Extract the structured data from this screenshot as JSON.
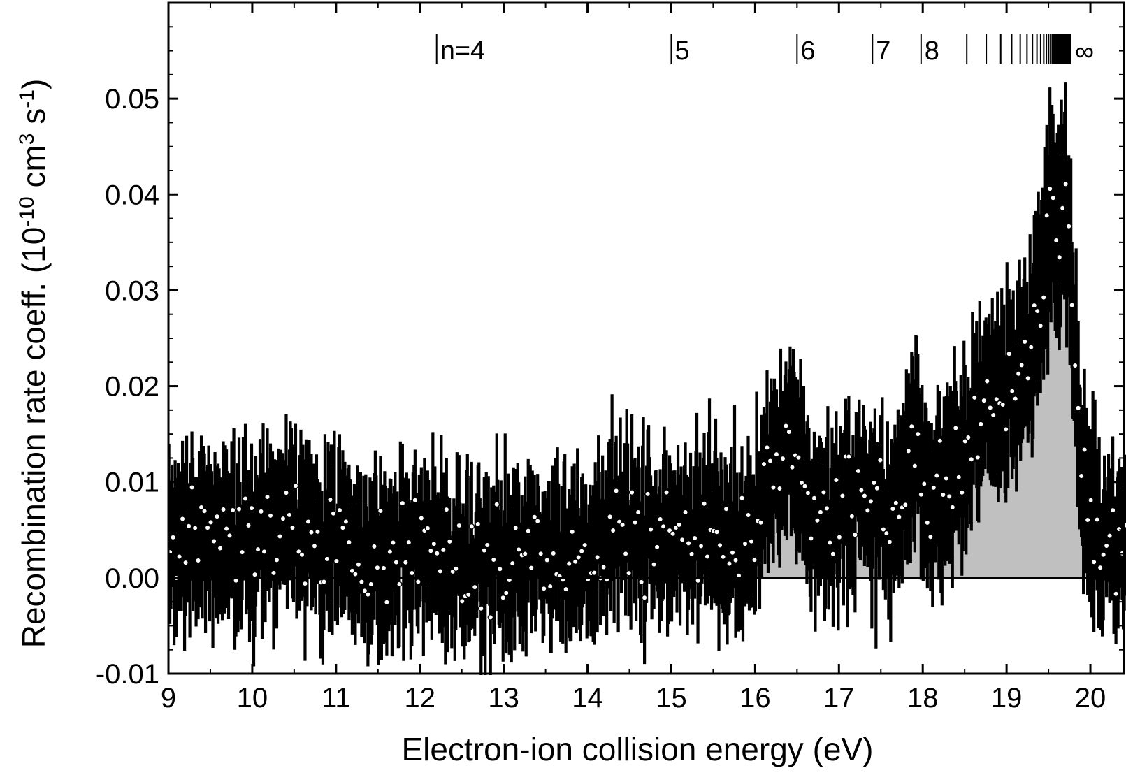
{
  "chart_data": {
    "type": "scatter",
    "xlabel": "Electron-ion collision energy (eV)",
    "ylabel": {
      "prefix": "Recombination rate coeff. (10",
      "exp1": "-10",
      "mid1": " cm",
      "exp2": "3",
      "mid2": " s",
      "exp3": "-1",
      "suffix": ")"
    },
    "xlim": [
      9,
      20.4
    ],
    "ylim": [
      -0.01,
      0.06
    ],
    "x_ticks": [
      9,
      10,
      11,
      12,
      13,
      14,
      15,
      16,
      17,
      18,
      19,
      20
    ],
    "x_tick_labels": [
      "9",
      "10",
      "11",
      "12",
      "13",
      "14",
      "15",
      "16",
      "17",
      "18",
      "19",
      "20"
    ],
    "y_ticks": [
      -0.01,
      0.0,
      0.01,
      0.02,
      0.03,
      0.04,
      0.05
    ],
    "y_tick_labels": [
      "-0.01",
      "0.00",
      "0.01",
      "0.02",
      "0.03",
      "0.04",
      "0.05"
    ],
    "grid": false,
    "fill_color": "#c0c0c0",
    "line_color": "#000000",
    "marker_face_color": "#ffffff",
    "series_markers": [
      {
        "x": 12.2,
        "label": "n=4"
      },
      {
        "x": 15.0,
        "label": "5"
      },
      {
        "x": 16.5,
        "label": "6"
      },
      {
        "x": 17.4,
        "label": "7"
      },
      {
        "x": 17.98,
        "label": "8"
      }
    ],
    "series_limit": {
      "x": 19.75,
      "label": "∞"
    },
    "trend": [
      [
        9.0,
        0.004
      ],
      [
        9.5,
        0.005
      ],
      [
        10.0,
        0.003
      ],
      [
        10.3,
        0.006
      ],
      [
        10.6,
        0.005
      ],
      [
        11.0,
        0.004
      ],
      [
        11.5,
        0.002
      ],
      [
        12.0,
        0.003
      ],
      [
        12.5,
        0.001
      ],
      [
        13.0,
        0.002
      ],
      [
        13.5,
        0.002
      ],
      [
        14.0,
        0.003
      ],
      [
        14.3,
        0.006
      ],
      [
        14.6,
        0.004
      ],
      [
        15.0,
        0.004
      ],
      [
        15.5,
        0.005
      ],
      [
        15.8,
        0.004
      ],
      [
        16.0,
        0.007
      ],
      [
        16.3,
        0.013
      ],
      [
        16.45,
        0.015
      ],
      [
        16.6,
        0.009
      ],
      [
        16.8,
        0.005
      ],
      [
        17.0,
        0.006
      ],
      [
        17.2,
        0.008
      ],
      [
        17.4,
        0.008
      ],
      [
        17.6,
        0.005
      ],
      [
        17.75,
        0.009
      ],
      [
        17.9,
        0.015
      ],
      [
        18.1,
        0.008
      ],
      [
        18.3,
        0.01
      ],
      [
        18.5,
        0.012
      ],
      [
        18.7,
        0.018
      ],
      [
        18.9,
        0.019
      ],
      [
        19.1,
        0.02
      ],
      [
        19.3,
        0.025
      ],
      [
        19.45,
        0.033
      ],
      [
        19.6,
        0.039
      ],
      [
        19.7,
        0.038
      ],
      [
        19.8,
        0.026
      ],
      [
        19.9,
        0.009
      ],
      [
        20.0,
        0.007
      ],
      [
        20.2,
        0.004
      ],
      [
        20.4,
        0.003
      ]
    ],
    "points_step": 0.0125,
    "noise_amplitude": 0.0065
  }
}
